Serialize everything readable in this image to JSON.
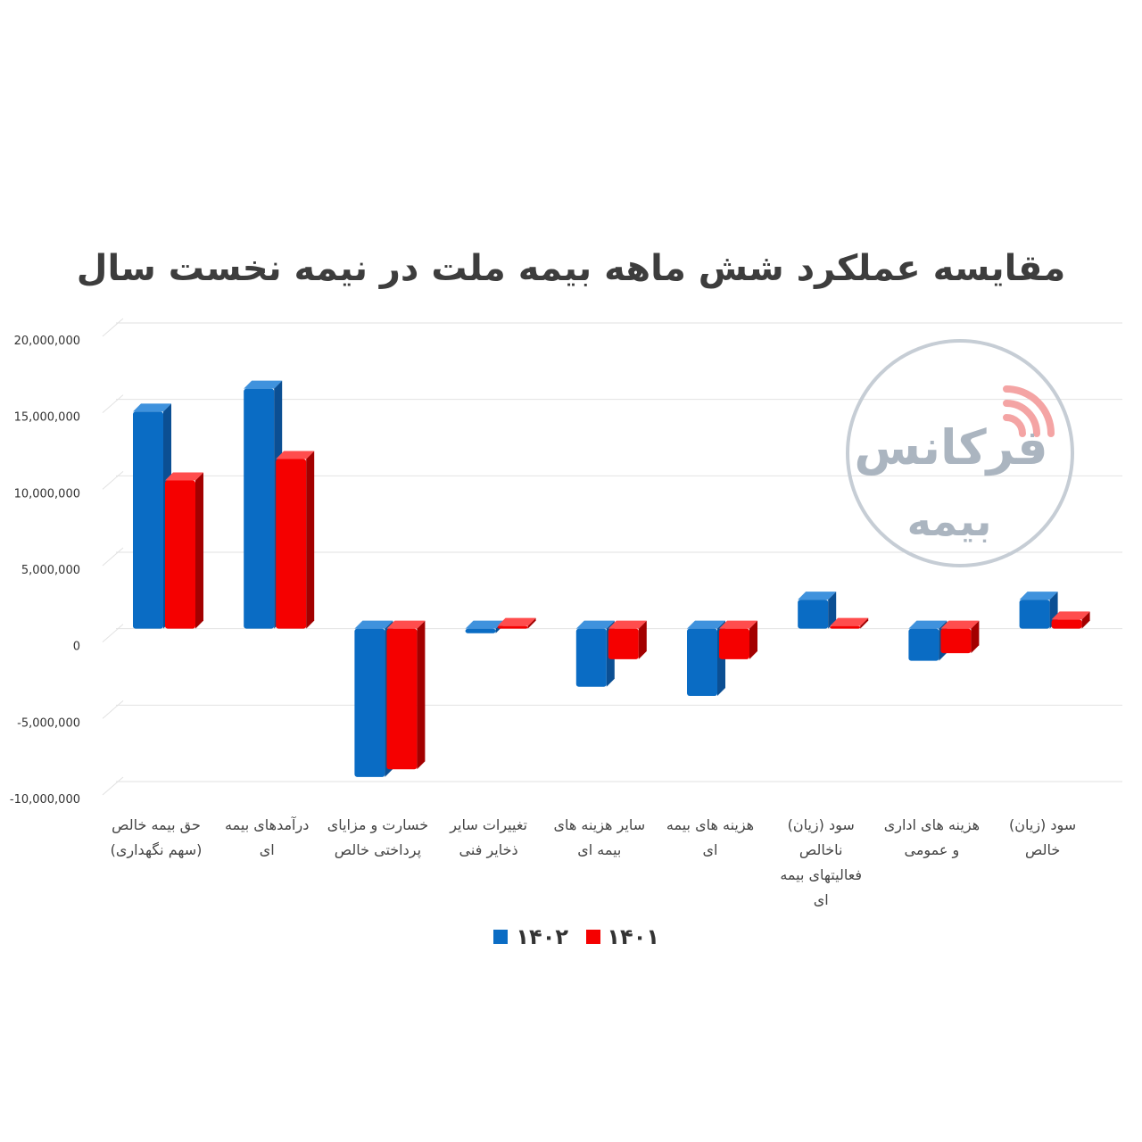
{
  "chart_data": {
    "type": "bar",
    "title": "مقایسه عملکرد شش ماهه بیمه ملت در نیمه نخست سال",
    "categories": [
      "حق بیمه خالص (سهم نگهداری)",
      "درآمدهای بیمه ای",
      "خسارت و مزایای پرداختی خالص",
      "تغییرات سایر ذخایر فنی",
      "سایر هزینه های بیمه ای",
      "هزینه های بیمه ای",
      "سود (زیان) ناخالص فعالیتهای بیمه ای",
      "هزینه های اداری و عمومی",
      "سود (زیان) خالص"
    ],
    "category_lines": [
      [
        "حق بیمه خالص",
        "(سهم نگهداری)"
      ],
      [
        "درآمدهای بیمه",
        "ای"
      ],
      [
        "خسارت و مزایای",
        "پرداختی خالص"
      ],
      [
        "تغییرات سایر",
        "ذخایر فنی"
      ],
      [
        "سایر هزینه های",
        "بیمه ای"
      ],
      [
        "هزینه های بیمه",
        "ای"
      ],
      [
        "سود (زیان)",
        "ناخالص",
        "فعالیتهای بیمه",
        "ای"
      ],
      [
        "هزینه های اداری",
        "و عمومی"
      ],
      [
        "سود (زیان)",
        "خالص"
      ]
    ],
    "series": [
      {
        "name": "۱۴۰۲",
        "color": "#0a6cc4",
        "side": "#0b4f93",
        "top": "#3f92dd",
        "values": [
          14200000,
          15700000,
          -9700000,
          -300000,
          -3800000,
          -4400000,
          1900000,
          -2100000,
          1900000
        ]
      },
      {
        "name": "۱۴۰۱",
        "color": "#f50000",
        "side": "#a30000",
        "top": "#ff4d4d",
        "values": [
          9700000,
          11100000,
          -9200000,
          -100000,
          -2000000,
          -2000000,
          -100000,
          -1600000,
          600000
        ]
      }
    ],
    "yticks": [
      {
        "value": 20000000,
        "label": "20,000,000"
      },
      {
        "value": 15000000,
        "label": "15,000,000"
      },
      {
        "value": 10000000,
        "label": "10,000,000"
      },
      {
        "value": 5000000,
        "label": "5,000,000"
      },
      {
        "value": 0,
        "label": "0"
      },
      {
        "value": -5000000,
        "label": "-5,000,000"
      },
      {
        "value": -10000000,
        "label": "-10,000,000"
      }
    ],
    "ylim": [
      -10000000,
      20000000
    ],
    "grid": true,
    "legend_position": "bottom"
  },
  "watermark": {
    "line1": "فرکانس",
    "line2": "بیمه",
    "text_color": "#a7b2bd",
    "accent_color": "#f4a0a0",
    "ring_color": "#c3cbd3"
  }
}
